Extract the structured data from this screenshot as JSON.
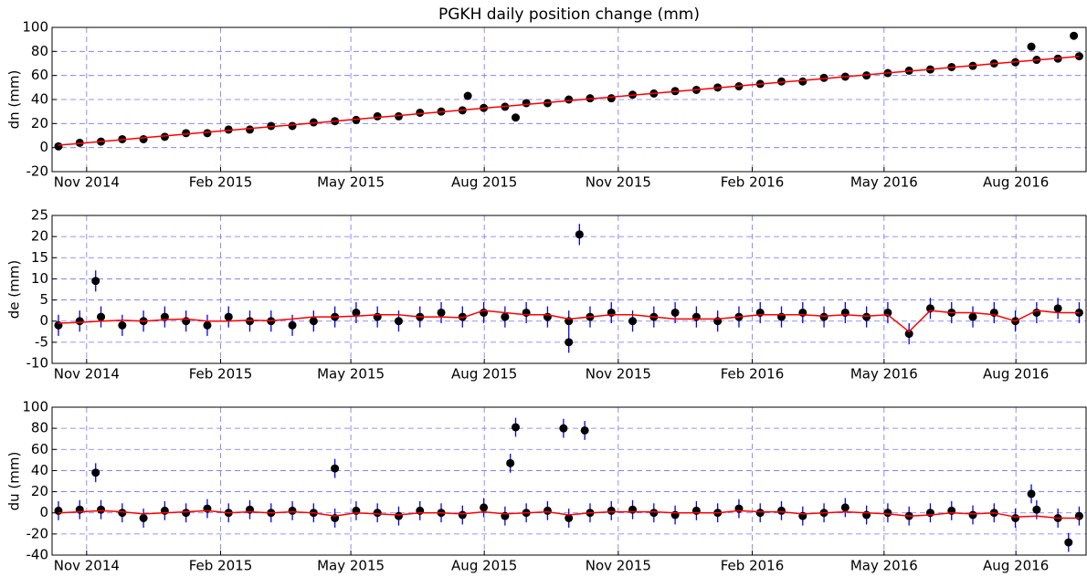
{
  "chart_data": [
    {
      "type": "scatter",
      "title": "PGKH daily position change (mm)",
      "ylabel": "dn (mm)",
      "xlim": [
        2014.768,
        2016.713
      ],
      "ylim": [
        -20,
        100
      ],
      "yticks": [
        -20,
        0,
        20,
        40,
        60,
        80,
        100
      ],
      "grid": true,
      "xticks": [
        {
          "value": 2014.833,
          "label": "Nov 2014"
        },
        {
          "value": 2015.085,
          "label": "Feb 2015"
        },
        {
          "value": 2015.33,
          "label": "May 2015"
        },
        {
          "value": 2015.581,
          "label": "Aug 2015"
        },
        {
          "value": 2015.833,
          "label": "Nov 2015"
        },
        {
          "value": 2016.085,
          "label": "Feb 2016"
        },
        {
          "value": 2016.333,
          "label": "May 2016"
        },
        {
          "value": 2016.581,
          "label": "Aug 2016"
        }
      ],
      "series": [
        {
          "mode": "markers",
          "color": "#000000",
          "x": [
            2014.78,
            2014.82,
            2014.86,
            2014.9,
            2014.94,
            2014.98,
            2015.02,
            2015.06,
            2015.1,
            2015.14,
            2015.18,
            2015.22,
            2015.26,
            2015.3,
            2015.34,
            2015.38,
            2015.42,
            2015.46,
            2015.5,
            2015.54,
            2015.58,
            2015.62,
            2015.66,
            2015.7,
            2015.74,
            2015.78,
            2015.82,
            2015.86,
            2015.9,
            2015.94,
            2015.98,
            2016.02,
            2016.06,
            2016.1,
            2016.14,
            2016.18,
            2016.22,
            2016.26,
            2016.3,
            2016.34,
            2016.38,
            2016.42,
            2016.46,
            2016.5,
            2016.54,
            2016.58,
            2016.62,
            2016.66,
            2016.7,
            2015.55,
            2015.64,
            2016.61,
            2016.69
          ],
          "values": [
            1,
            4,
            5,
            7,
            7,
            9,
            12,
            12,
            15,
            15,
            18,
            18,
            21,
            22,
            23,
            26,
            26,
            29,
            30,
            31,
            33,
            34,
            37,
            37,
            40,
            41,
            41,
            44,
            45,
            47,
            48,
            50,
            51,
            53,
            55,
            55,
            58,
            59,
            60,
            62,
            64,
            65,
            67,
            68,
            70,
            71,
            73,
            74,
            76,
            43,
            25,
            84,
            93
          ]
        },
        {
          "mode": "line",
          "color": "#ff0000",
          "x": [
            2014.78,
            2014.82,
            2014.86,
            2014.9,
            2014.94,
            2014.98,
            2015.02,
            2015.06,
            2015.1,
            2015.14,
            2015.18,
            2015.22,
            2015.26,
            2015.3,
            2015.34,
            2015.38,
            2015.42,
            2015.46,
            2015.5,
            2015.54,
            2015.58,
            2015.62,
            2015.66,
            2015.7,
            2015.74,
            2015.78,
            2015.82,
            2015.86,
            2015.9,
            2015.94,
            2015.98,
            2016.02,
            2016.06,
            2016.1,
            2016.14,
            2016.18,
            2016.22,
            2016.26,
            2016.3,
            2016.34,
            2016.38,
            2016.42,
            2016.46,
            2016.5,
            2016.54,
            2016.58,
            2016.62,
            2016.66,
            2016.7
          ],
          "values": [
            2,
            3.5,
            5.1,
            6.6,
            8.2,
            9.7,
            11.2,
            12.8,
            14.3,
            15.9,
            17.4,
            18.9,
            20.5,
            22,
            23.6,
            25.1,
            26.6,
            28.2,
            29.7,
            31.3,
            32.8,
            34.3,
            35.9,
            37.4,
            39,
            40.5,
            42,
            43.6,
            45.1,
            46.7,
            48.2,
            49.7,
            51.3,
            52.8,
            54.4,
            55.9,
            57.4,
            59,
            60.5,
            62.1,
            63.6,
            65.1,
            66.7,
            68.2,
            69.8,
            71.3,
            72.8,
            74.4,
            75.9
          ]
        }
      ]
    },
    {
      "type": "scatter",
      "ylabel": "de (mm)",
      "xlim": [
        2014.768,
        2016.713
      ],
      "ylim": [
        -10,
        25
      ],
      "yticks": [
        -10,
        -5,
        0,
        5,
        10,
        15,
        20,
        25
      ],
      "grid": true,
      "xticks": [
        {
          "value": 2014.833,
          "label": "Nov 2014"
        },
        {
          "value": 2015.085,
          "label": "Feb 2015"
        },
        {
          "value": 2015.33,
          "label": "May 2015"
        },
        {
          "value": 2015.581,
          "label": "Aug 2015"
        },
        {
          "value": 2015.833,
          "label": "Nov 2015"
        },
        {
          "value": 2016.085,
          "label": "Feb 2016"
        },
        {
          "value": 2016.333,
          "label": "May 2016"
        },
        {
          "value": 2016.581,
          "label": "Aug 2016"
        }
      ],
      "series": [
        {
          "mode": "markers",
          "color": "#000000",
          "error": 2.5,
          "error_color": "#0000ff",
          "x": [
            2014.78,
            2014.82,
            2014.86,
            2014.9,
            2014.94,
            2014.98,
            2015.02,
            2015.06,
            2015.1,
            2015.14,
            2015.18,
            2015.22,
            2015.26,
            2015.3,
            2015.34,
            2015.38,
            2015.42,
            2015.46,
            2015.5,
            2015.54,
            2015.58,
            2015.62,
            2015.66,
            2015.7,
            2015.74,
            2015.78,
            2015.82,
            2015.86,
            2015.9,
            2015.94,
            2015.98,
            2016.02,
            2016.06,
            2016.1,
            2016.14,
            2016.18,
            2016.22,
            2016.26,
            2016.3,
            2016.34,
            2016.38,
            2016.42,
            2016.46,
            2016.5,
            2016.54,
            2016.58,
            2016.62,
            2016.66,
            2016.7,
            2014.85,
            2015.76,
            2015.74
          ],
          "values": [
            -1,
            0,
            1,
            -1,
            0,
            1,
            0,
            -1,
            1,
            0,
            0,
            -1,
            0,
            1,
            2,
            1,
            0,
            1,
            2,
            1,
            2,
            1,
            2,
            1,
            0,
            1,
            2,
            0,
            1,
            2,
            1,
            0,
            1,
            2,
            1,
            2,
            1,
            2,
            1,
            2,
            -3,
            3,
            2,
            1,
            2,
            0,
            2,
            3,
            2,
            9.5,
            20.5,
            -5
          ]
        },
        {
          "mode": "line",
          "color": "#ff0000",
          "x": [
            2014.78,
            2014.82,
            2014.86,
            2014.9,
            2014.94,
            2014.98,
            2015.02,
            2015.06,
            2015.1,
            2015.14,
            2015.18,
            2015.22,
            2015.26,
            2015.3,
            2015.34,
            2015.38,
            2015.42,
            2015.46,
            2015.5,
            2015.54,
            2015.58,
            2015.62,
            2015.66,
            2015.7,
            2015.74,
            2015.78,
            2015.82,
            2015.86,
            2015.9,
            2015.94,
            2015.98,
            2016.02,
            2016.06,
            2016.1,
            2016.14,
            2016.18,
            2016.22,
            2016.26,
            2016.3,
            2016.34,
            2016.38,
            2016.42,
            2016.46,
            2016.5,
            2016.54,
            2016.58,
            2016.62,
            2016.66,
            2016.7
          ],
          "values": [
            -0.5,
            -0.3,
            0,
            0.2,
            0,
            0.3,
            0.5,
            0,
            0,
            0.2,
            0.1,
            0.5,
            1,
            1,
            1.2,
            1.5,
            1.5,
            1,
            1,
            0.8,
            2.5,
            2,
            1.5,
            1.5,
            0.5,
            1,
            1.5,
            1.5,
            1,
            0.5,
            0.5,
            0.5,
            1,
            1.5,
            1.5,
            1.5,
            1.2,
            1.5,
            1.2,
            1.5,
            -2.5,
            2.5,
            2,
            2,
            1.5,
            0,
            2.5,
            2,
            2
          ]
        }
      ]
    },
    {
      "type": "scatter",
      "ylabel": "du (mm)",
      "xlim": [
        2014.768,
        2016.713
      ],
      "ylim": [
        -40,
        100
      ],
      "yticks": [
        -40,
        -20,
        0,
        20,
        40,
        60,
        80,
        100
      ],
      "grid": true,
      "xticks": [
        {
          "value": 2014.833,
          "label": "Nov 2014"
        },
        {
          "value": 2015.085,
          "label": "Feb 2015"
        },
        {
          "value": 2015.33,
          "label": "May 2015"
        },
        {
          "value": 2015.581,
          "label": "Aug 2015"
        },
        {
          "value": 2015.833,
          "label": "Nov 2015"
        },
        {
          "value": 2016.085,
          "label": "Feb 2016"
        },
        {
          "value": 2016.333,
          "label": "May 2016"
        },
        {
          "value": 2016.581,
          "label": "Aug 2016"
        }
      ],
      "series": [
        {
          "mode": "markers",
          "color": "#000000",
          "error": 9,
          "error_color": "#0000ff",
          "x": [
            2014.78,
            2014.82,
            2014.86,
            2014.9,
            2014.94,
            2014.98,
            2015.02,
            2015.06,
            2015.1,
            2015.14,
            2015.18,
            2015.22,
            2015.26,
            2015.3,
            2015.34,
            2015.38,
            2015.42,
            2015.46,
            2015.5,
            2015.54,
            2015.58,
            2015.62,
            2015.66,
            2015.7,
            2015.74,
            2015.78,
            2015.82,
            2015.86,
            2015.9,
            2015.94,
            2015.98,
            2016.02,
            2016.06,
            2016.1,
            2016.14,
            2016.18,
            2016.22,
            2016.26,
            2016.3,
            2016.34,
            2016.38,
            2016.42,
            2016.46,
            2016.5,
            2016.54,
            2016.58,
            2016.62,
            2016.66,
            2016.7,
            2014.85,
            2015.3,
            2015.63,
            2015.64,
            2015.73,
            2015.77,
            2016.61,
            2016.68
          ],
          "values": [
            2,
            3,
            3,
            0,
            -5,
            2,
            0,
            4,
            0,
            3,
            0,
            2,
            0,
            -5,
            2,
            0,
            -3,
            2,
            0,
            -2,
            5,
            -3,
            0,
            2,
            -5,
            0,
            2,
            3,
            0,
            -2,
            2,
            0,
            4,
            0,
            2,
            -3,
            0,
            5,
            -2,
            0,
            -3,
            0,
            2,
            -2,
            0,
            -5,
            3,
            -5,
            -3,
            38,
            42,
            47,
            81,
            80,
            78,
            18,
            -28
          ]
        },
        {
          "mode": "line",
          "color": "#ff0000",
          "x": [
            2014.78,
            2014.82,
            2014.86,
            2014.9,
            2014.94,
            2014.98,
            2015.02,
            2015.06,
            2015.1,
            2015.14,
            2015.18,
            2015.22,
            2015.26,
            2015.3,
            2015.34,
            2015.38,
            2015.42,
            2015.46,
            2015.5,
            2015.54,
            2015.58,
            2015.62,
            2015.66,
            2015.7,
            2015.74,
            2015.78,
            2015.82,
            2015.86,
            2015.9,
            2015.94,
            2015.98,
            2016.02,
            2016.06,
            2016.1,
            2016.14,
            2016.18,
            2016.22,
            2016.26,
            2016.3,
            2016.34,
            2016.38,
            2016.42,
            2016.46,
            2016.5,
            2016.54,
            2016.58,
            2016.62,
            2016.66,
            2016.7
          ],
          "values": [
            0,
            1,
            2,
            1,
            -1,
            0,
            1,
            2,
            0,
            1,
            0,
            1,
            0,
            -3,
            0,
            -1,
            -2,
            0,
            0,
            -1,
            1,
            -1,
            0,
            1,
            -2,
            0,
            1,
            1,
            1,
            0,
            0,
            0,
            2,
            1,
            1,
            -1,
            0,
            1,
            0,
            -1,
            -3,
            -2,
            0,
            -1,
            0,
            -4,
            -3,
            -5,
            -5
          ]
        }
      ]
    }
  ]
}
